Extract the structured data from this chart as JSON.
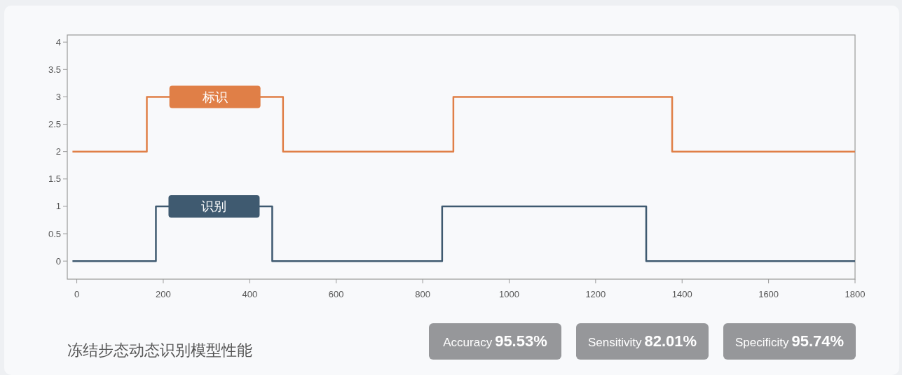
{
  "chart_data": {
    "type": "step",
    "title": "冻结步态动态识别模型性能",
    "series": [
      {
        "name": "标识",
        "color": "#e07f47",
        "x": [
          -10,
          162,
          477,
          871,
          1377,
          1800
        ],
        "values": [
          2,
          3,
          2,
          3,
          2,
          2
        ]
      },
      {
        "name": "识别",
        "color": "#3f5a70",
        "x": [
          -10,
          183,
          452,
          845,
          1317,
          1800
        ],
        "values": [
          0,
          1,
          0,
          1,
          0,
          0
        ]
      }
    ],
    "xlim": [
      -22,
      1800
    ],
    "xticks": [
      0,
      200,
      400,
      600,
      800,
      1000,
      1200,
      1400,
      1600,
      1800
    ],
    "ylim": [
      -0.33,
      4.13
    ],
    "yticks": [
      0,
      0.5,
      1,
      1.5,
      2,
      2.5,
      3,
      3.5,
      4
    ],
    "grid": false,
    "legend": false,
    "annotations": [
      "Accuracy",
      "95.53%",
      "Sensitivity",
      "82.01%",
      "Specificity",
      "95.74%"
    ]
  }
}
